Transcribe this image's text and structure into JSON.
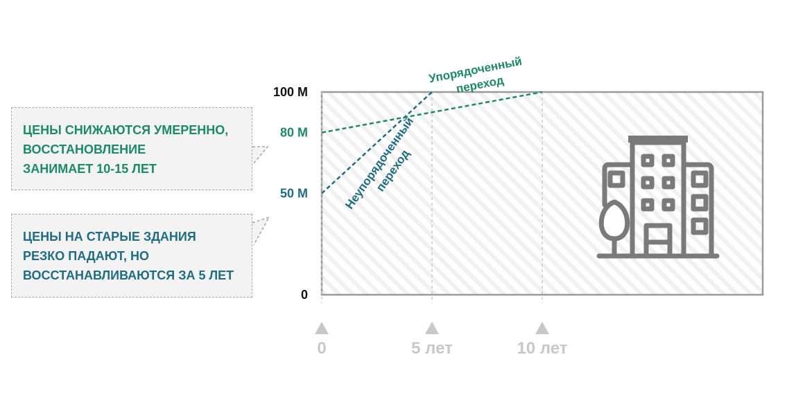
{
  "chart_data": {
    "type": "line",
    "x_ticks": [
      "0",
      "5 лет",
      "10 лет"
    ],
    "y_ticks": [
      "0",
      "50 M",
      "80 M",
      "100 M"
    ],
    "xlim": [
      0,
      20
    ],
    "ylim": [
      0,
      100
    ],
    "series": [
      {
        "name": "Неупорядоченный переход",
        "color": "#1f6c84",
        "x": [
          0,
          5
        ],
        "y": [
          50,
          100
        ]
      },
      {
        "name": "Упорядоченный переход",
        "color": "#1c8a63",
        "x": [
          0,
          10
        ],
        "y": [
          80,
          100
        ]
      }
    ],
    "grid": {
      "vertical_at": [
        0,
        5,
        10
      ]
    }
  },
  "callouts": [
    {
      "lines": [
        "ЦЕНЫ СНИЖАЮТСЯ УМЕРЕННО,",
        "ВОССТАНОВЛЕНИЕ",
        "ЗАНИМАЕТ 10-15 ЛЕТ"
      ]
    },
    {
      "lines": [
        "ЦЕНЫ НА СТАРЫЕ ЗДАНИЯ",
        "РЕЗКО ПАДАЮТ, НО",
        "ВОССТАНАВЛИВАЮТСЯ ЗА 5 ЛЕТ"
      ]
    }
  ],
  "labels": {
    "ordered": [
      "Упорядоченный",
      "переход"
    ],
    "disordered": [
      "Неупорядоченный",
      "переход"
    ]
  },
  "colors": {
    "tick_gray": "#c8c8c8",
    "frame": "#9a9a9a",
    "icon": "#7a7a7a"
  },
  "icons": {
    "building": "building-icon"
  }
}
